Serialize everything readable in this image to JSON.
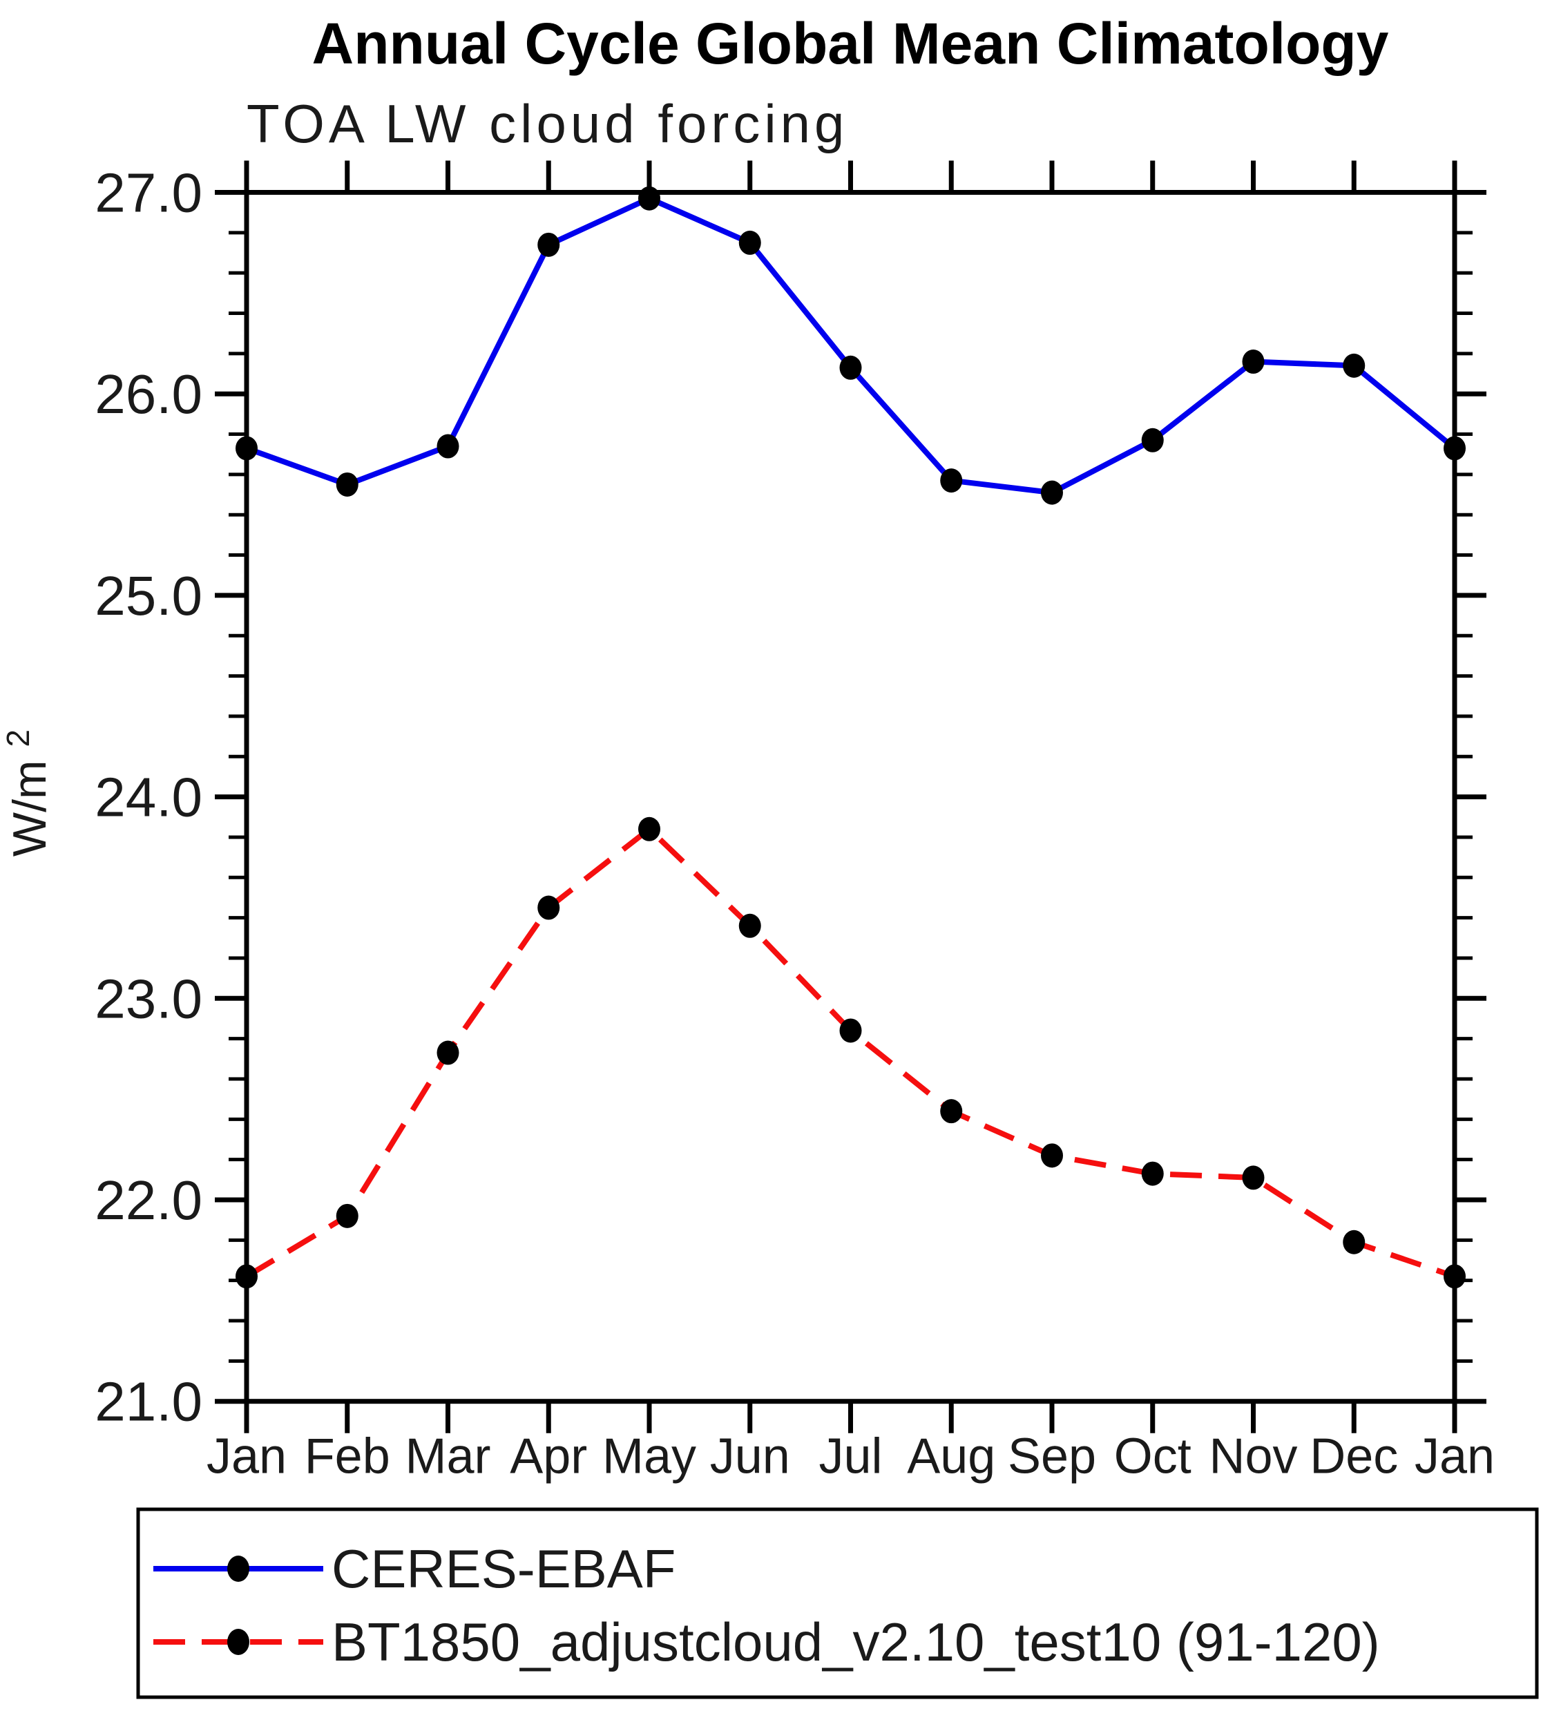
{
  "y_axis": {
    "label_base": "W/m",
    "label_superscript": "2",
    "tick_labels": [
      "27.0",
      "26.0",
      "25.0",
      "24.0",
      "23.0",
      "22.0",
      "21.0"
    ]
  },
  "x_axis": {
    "tick_labels": [
      "Jan",
      "Feb",
      "Mar",
      "Apr",
      "May",
      "Jun",
      "Jul",
      "Aug",
      "Sep",
      "Oct",
      "Nov",
      "Dec",
      "Jan"
    ]
  },
  "legend": {
    "position": "bottom",
    "entries": [
      {
        "label": "CERES-EBAF",
        "color": "#0000ee",
        "line_style": "solid",
        "marker": "filled-black-circle"
      },
      {
        "label": "BT1850_adjustcloud_v2.10_test10 (91-120)",
        "color": "#f50f0f",
        "line_style": "dashed",
        "marker": "filled-black-circle"
      }
    ]
  },
  "chart_data": {
    "type": "line",
    "title": "Annual Cycle Global Mean Climatology",
    "subtitle": "TOA LW cloud forcing",
    "ylabel": "W/m2",
    "xlabel": "",
    "grid": false,
    "legend_position": "bottom",
    "ylim": [
      21.0,
      27.0
    ],
    "ytick_interval": 1.0,
    "minor_tick_interval": 0.2,
    "categories": [
      "Jan",
      "Feb",
      "Mar",
      "Apr",
      "May",
      "Jun",
      "Jul",
      "Aug",
      "Sep",
      "Oct",
      "Nov",
      "Dec",
      "Jan"
    ],
    "series": [
      {
        "name": "CERES-EBAF",
        "color": "#0000ee",
        "style": "solid",
        "marker": "filled-black-circle",
        "values": [
          25.73,
          25.55,
          25.74,
          26.74,
          26.97,
          26.75,
          26.13,
          25.57,
          25.51,
          25.77,
          26.16,
          26.14,
          25.73
        ]
      },
      {
        "name": "BT1850_adjustcloud_v2.10_test10 (91-120)",
        "color": "#f50f0f",
        "style": "dashed",
        "marker": "filled-black-circle",
        "values": [
          21.62,
          21.92,
          22.73,
          23.45,
          23.84,
          23.36,
          22.84,
          22.44,
          22.22,
          22.13,
          22.11,
          21.79,
          21.62
        ]
      }
    ]
  }
}
